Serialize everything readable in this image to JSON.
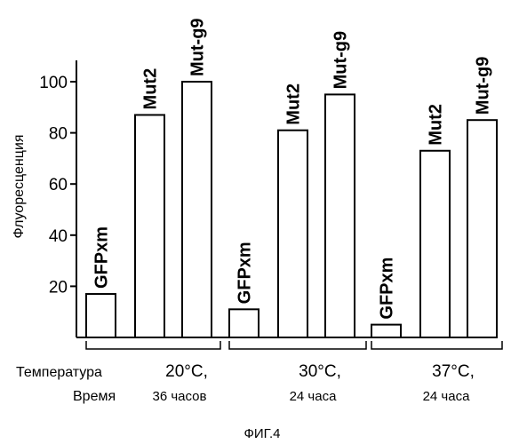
{
  "chart_data": {
    "type": "bar",
    "ylabel": "Флуоресценция",
    "ylim": [
      0,
      110
    ],
    "yticks": [
      20,
      40,
      60,
      80,
      100
    ],
    "condition_labels": {
      "temperature": "Температура",
      "time": "Время"
    },
    "groups": [
      {
        "temperature": "20°C,",
        "time": "36 часов",
        "bars": [
          {
            "name": "GFPxm",
            "value": 17
          },
          {
            "name": "Mut2",
            "value": 87
          },
          {
            "name": "Mut-g9",
            "value": 100
          }
        ]
      },
      {
        "temperature": "30°C,",
        "time": "24 часа",
        "bars": [
          {
            "name": "GFPxm",
            "value": 11
          },
          {
            "name": "Mut2",
            "value": 81
          },
          {
            "name": "Mut-g9",
            "value": 95
          }
        ]
      },
      {
        "temperature": "37°C,",
        "time": "24 часа",
        "bars": [
          {
            "name": "GFPxm",
            "value": 5
          },
          {
            "name": "Mut2",
            "value": 73
          },
          {
            "name": "Mut-g9",
            "value": 85
          }
        ]
      }
    ]
  },
  "figure_caption": "ФИГ.4"
}
